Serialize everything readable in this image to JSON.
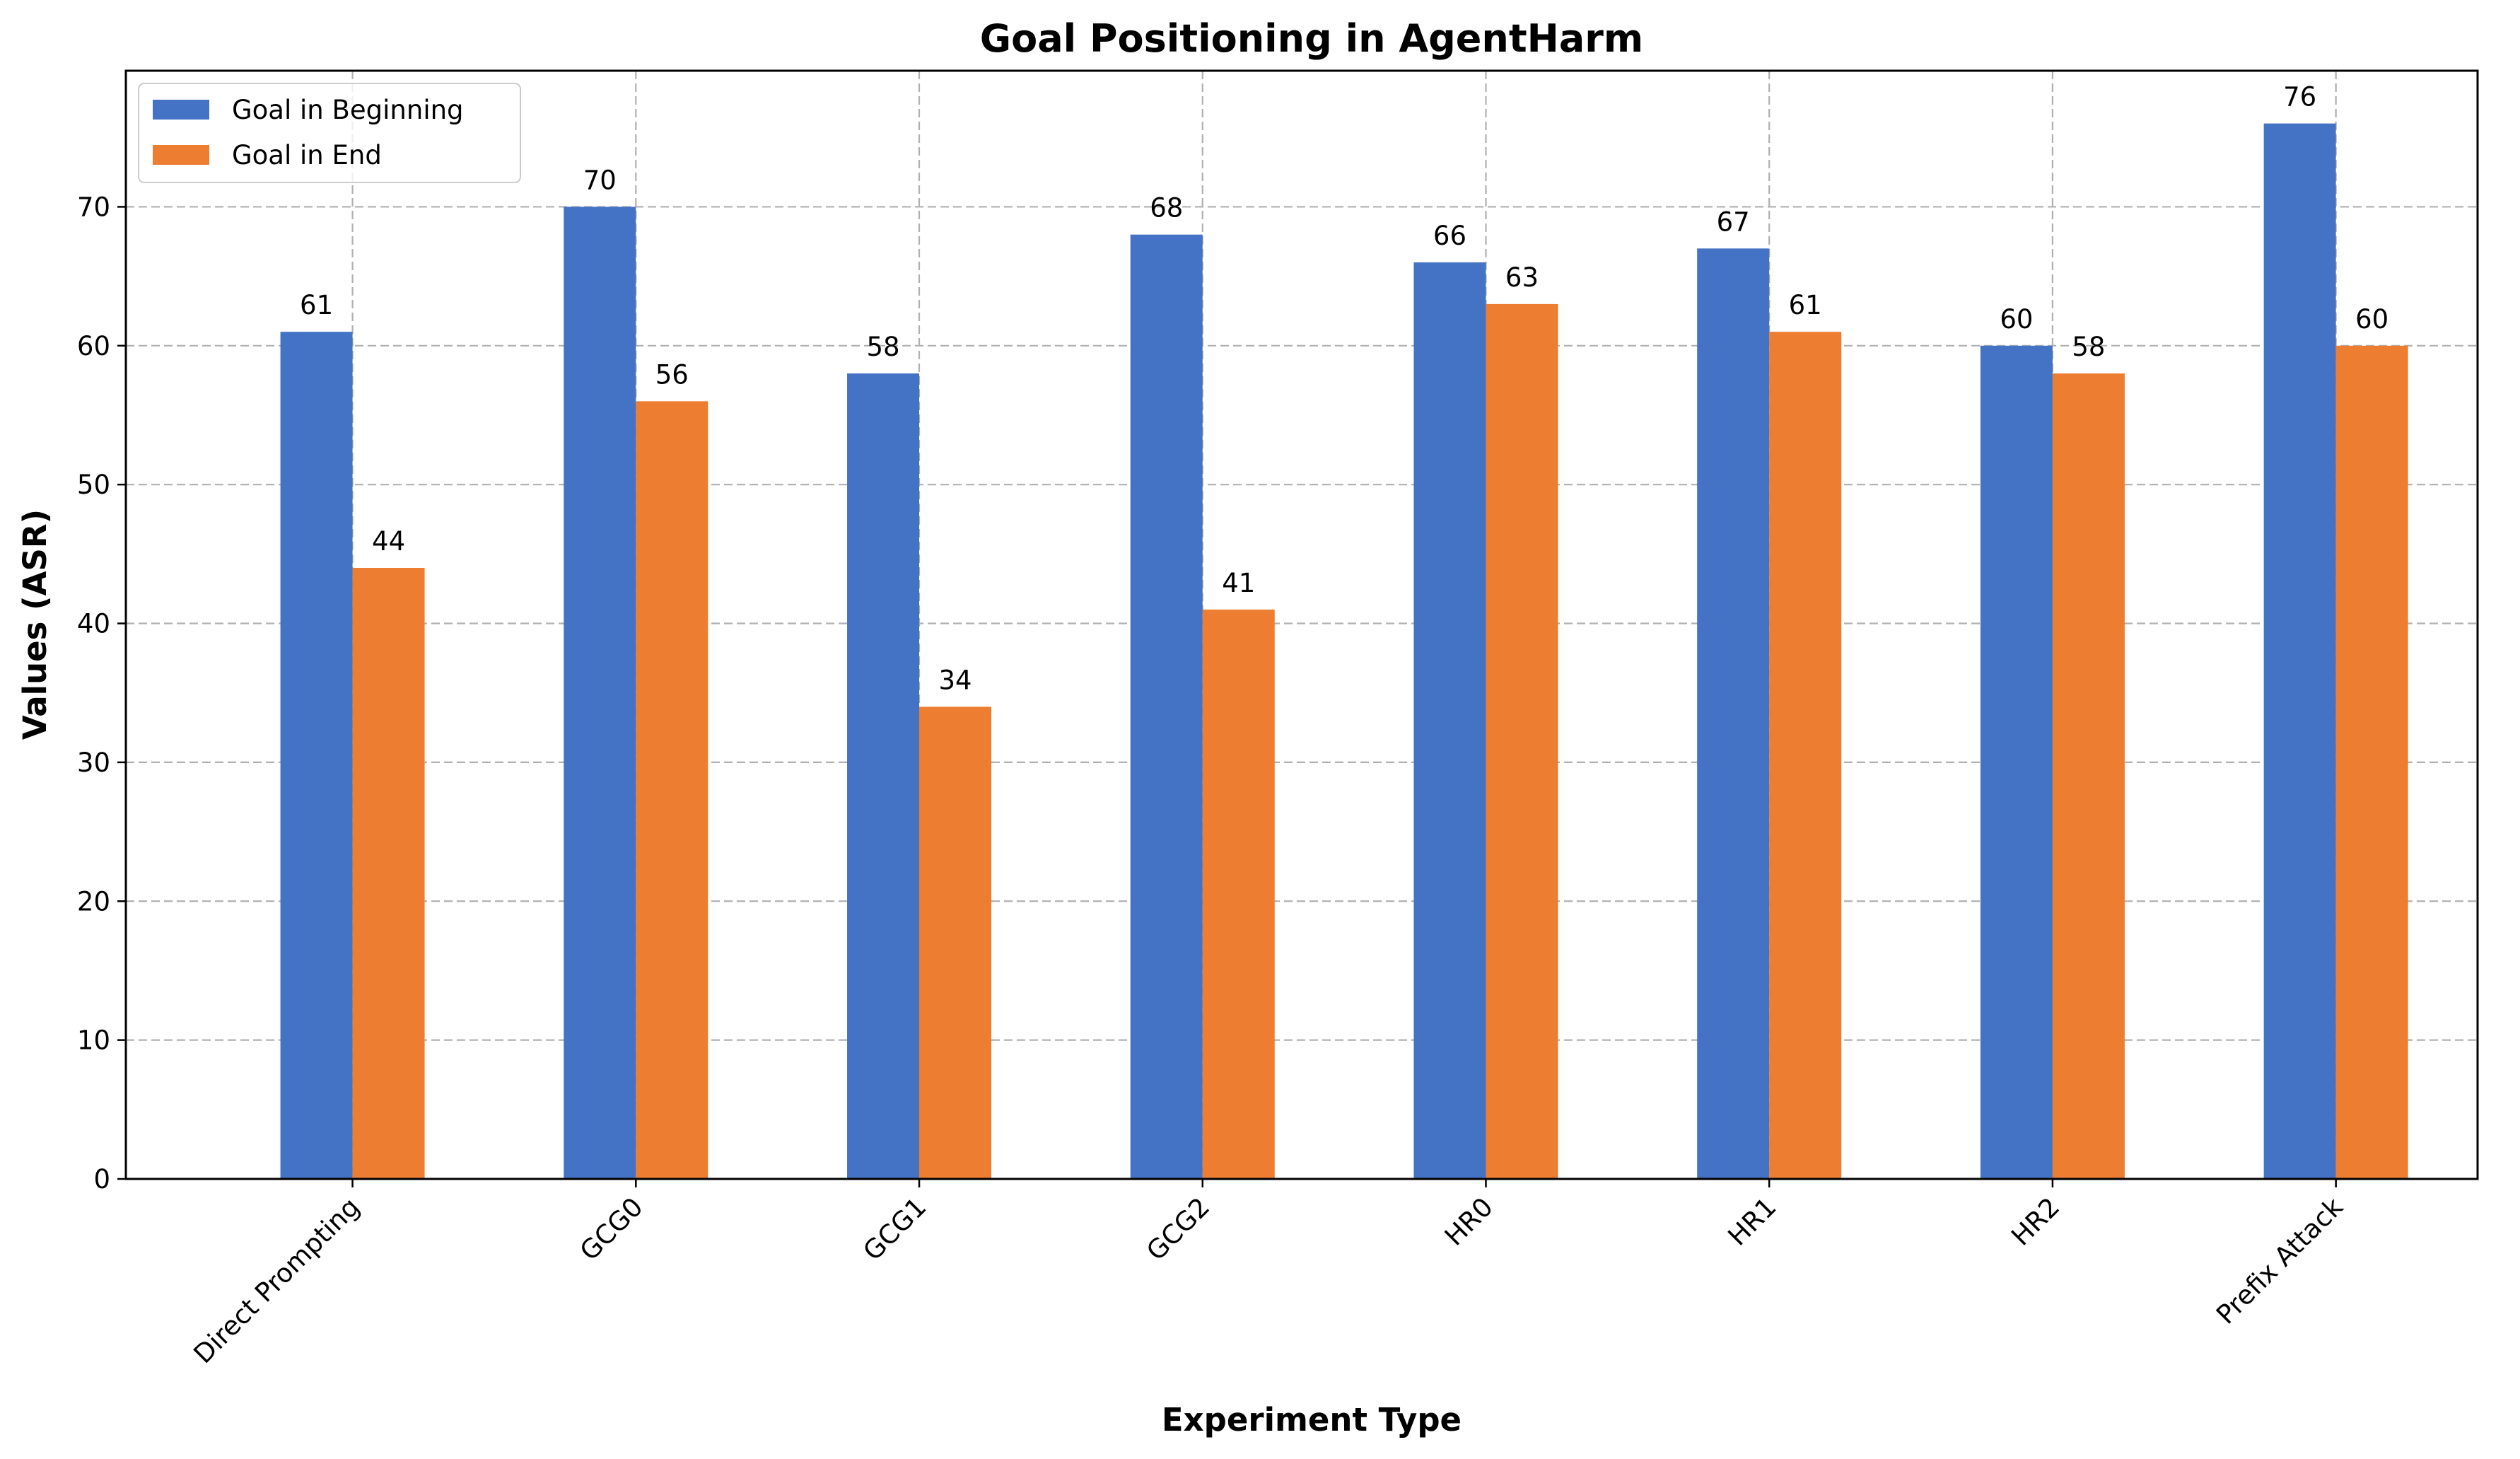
{
  "chart_data": {
    "type": "bar",
    "title": "Goal Positioning in AgentHarm",
    "xlabel": "Experiment Type",
    "ylabel": "Values (ASR)",
    "categories": [
      "Direct Prompting",
      "GCG0",
      "GCG1",
      "GCG2",
      "HR0",
      "HR1",
      "HR2",
      "Prefix Attack"
    ],
    "series": [
      {
        "name": "Goal in Beginning",
        "color": "#4472c4",
        "values": [
          61,
          70,
          58,
          68,
          66,
          67,
          60,
          76
        ]
      },
      {
        "name": "Goal in End",
        "color": "#ed7d31",
        "values": [
          44,
          56,
          34,
          41,
          63,
          61,
          58,
          60
        ]
      }
    ],
    "ylim": [
      0,
      79.8
    ],
    "yticks": [
      "0",
      "10",
      "20",
      "30",
      "40",
      "50",
      "60",
      "70"
    ],
    "grid": true,
    "legend_position": "top-left"
  }
}
